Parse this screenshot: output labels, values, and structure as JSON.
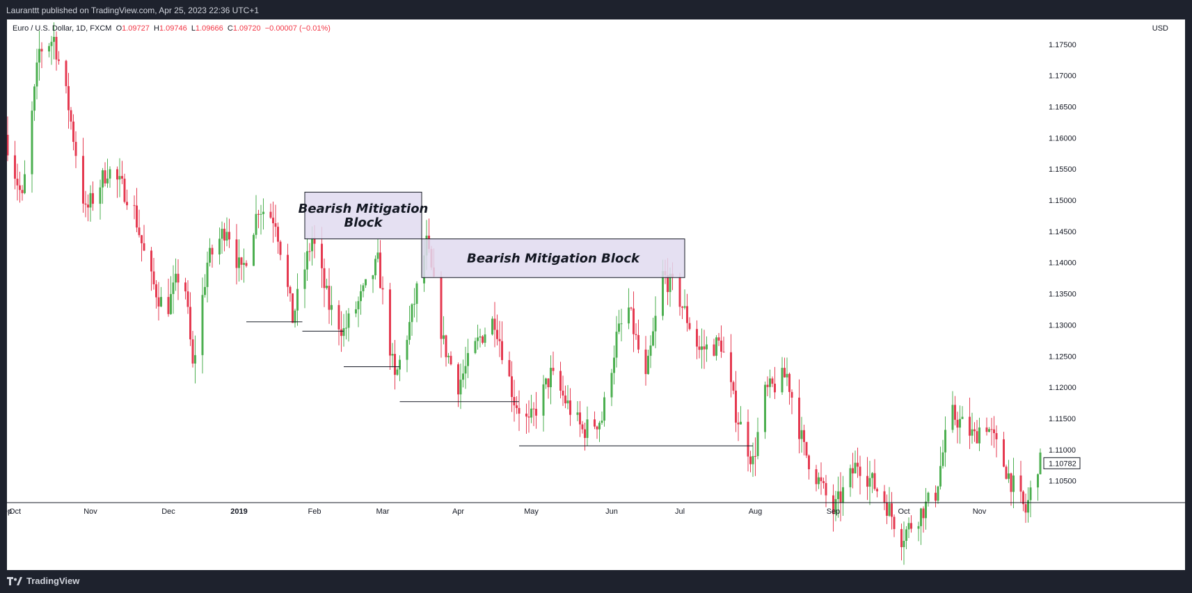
{
  "header": {
    "published_line": "Lauranttt published on TradingView.com, Apr 25, 2023 22:36 UTC+1"
  },
  "legend": {
    "symbol": "Euro / U.S. Dollar, 1D, FXCM",
    "o_label": "O",
    "o_value": "1.09727",
    "h_label": "H",
    "h_value": "1.09746",
    "l_label": "L",
    "l_value": "1.09666",
    "c_label": "C",
    "c_value": "1.09720",
    "change": "−0.00007 (−0.01%)"
  },
  "price_axis": {
    "currency": "USD"
  },
  "footer": {
    "brand": "TradingView"
  },
  "colors": {
    "up": "#4caf50",
    "down": "#e53950",
    "box_fill": "#e0dbf0",
    "box_stroke": "#131722",
    "background": "#ffffff"
  },
  "chart_data": {
    "type": "candlestick",
    "symbol": "EURUSD",
    "timeframe": "1D",
    "ylim": [
      1.1015,
      1.179
    ],
    "y_ticks": [
      "1.17500",
      "1.17000",
      "1.16500",
      "1.16000",
      "1.15500",
      "1.15000",
      "1.14500",
      "1.14000",
      "1.13500",
      "1.13000",
      "1.12500",
      "1.12000",
      "1.11500",
      "1.11000",
      "1.10500"
    ],
    "x_range": [
      "2018-09-28",
      "2019-11-26"
    ],
    "x_ticks": [
      {
        "label": "ep",
        "date": "2018-09-28"
      },
      {
        "label": "Oct",
        "date": "2018-10-01"
      },
      {
        "label": "Nov",
        "date": "2018-11-01"
      },
      {
        "label": "Dec",
        "date": "2018-12-03"
      },
      {
        "label": "2019",
        "date": "2019-01-01"
      },
      {
        "label": "Feb",
        "date": "2019-02-01"
      },
      {
        "label": "Mar",
        "date": "2019-03-01"
      },
      {
        "label": "Apr",
        "date": "2019-04-01"
      },
      {
        "label": "May",
        "date": "2019-05-01"
      },
      {
        "label": "Jun",
        "date": "2019-06-03"
      },
      {
        "label": "Jul",
        "date": "2019-07-01"
      },
      {
        "label": "Aug",
        "date": "2019-08-01"
      },
      {
        "label": "Sep",
        "date": "2019-09-02"
      },
      {
        "label": "Oct",
        "date": "2019-10-01"
      },
      {
        "label": "Nov",
        "date": "2019-11-01"
      }
    ],
    "last_price": "1.10782",
    "price_path": [
      [
        "2018-09-28",
        1.1605
      ],
      [
        "2018-10-05",
        1.15
      ],
      [
        "2018-10-12",
        1.174
      ],
      [
        "2018-10-18",
        1.176
      ],
      [
        "2018-10-24",
        1.165
      ],
      [
        "2018-10-31",
        1.148
      ],
      [
        "2018-11-09",
        1.155
      ],
      [
        "2018-11-13",
        1.153
      ],
      [
        "2018-11-19",
        1.15
      ],
      [
        "2018-11-26",
        1.138
      ],
      [
        "2018-12-03",
        1.132
      ],
      [
        "2018-12-10",
        1.14
      ],
      [
        "2018-12-14",
        1.123
      ],
      [
        "2018-12-20",
        1.14
      ],
      [
        "2018-12-28",
        1.146
      ],
      [
        "2019-01-03",
        1.138
      ],
      [
        "2019-01-10",
        1.149
      ],
      [
        "2019-01-17",
        1.147
      ],
      [
        "2019-01-24",
        1.131
      ],
      [
        "2019-02-01",
        1.144
      ],
      [
        "2019-02-08",
        1.133
      ],
      [
        "2019-02-14",
        1.129
      ],
      [
        "2019-02-22",
        1.135
      ],
      [
        "2019-02-28",
        1.14
      ],
      [
        "2019-03-07",
        1.121
      ],
      [
        "2019-03-13",
        1.13
      ],
      [
        "2019-03-20",
        1.143
      ],
      [
        "2019-03-27",
        1.127
      ],
      [
        "2019-04-02",
        1.1205
      ],
      [
        "2019-04-11",
        1.128
      ],
      [
        "2019-04-17",
        1.131
      ],
      [
        "2019-04-25",
        1.118
      ],
      [
        "2019-05-01",
        1.114
      ],
      [
        "2019-05-10",
        1.122
      ],
      [
        "2019-05-23",
        1.113
      ],
      [
        "2019-05-31",
        1.115
      ],
      [
        "2019-06-06",
        1.128
      ],
      [
        "2019-06-11",
        1.1325
      ],
      [
        "2019-06-18",
        1.121
      ],
      [
        "2019-06-25",
        1.138
      ],
      [
        "2019-07-01",
        1.135
      ],
      [
        "2019-07-10",
        1.126
      ],
      [
        "2019-07-19",
        1.127
      ],
      [
        "2019-07-25",
        1.116
      ],
      [
        "2019-08-01",
        1.108
      ],
      [
        "2019-08-06",
        1.119
      ],
      [
        "2019-08-15",
        1.122
      ],
      [
        "2019-08-22",
        1.11
      ],
      [
        "2019-09-03",
        1.1
      ],
      [
        "2019-09-13",
        1.108
      ],
      [
        "2019-09-24",
        1.102
      ],
      [
        "2019-10-01",
        1.096
      ],
      [
        "2019-10-15",
        1.103
      ],
      [
        "2019-10-21",
        1.116
      ],
      [
        "2019-10-31",
        1.112
      ],
      [
        "2019-11-04",
        1.115
      ],
      [
        "2019-11-15",
        1.105
      ],
      [
        "2019-11-21",
        1.1
      ],
      [
        "2019-11-26",
        1.1078
      ]
    ],
    "annotations": [
      {
        "type": "box",
        "label": "Bearish Mitigation Block",
        "lines": [
          "Bearish Mitigation",
          "Block"
        ],
        "x": [
          "2019-01-28",
          "2019-03-17"
        ],
        "y": [
          1.1438,
          1.1513
        ]
      },
      {
        "type": "box",
        "label": "Bearish Mitigation Block",
        "lines": [
          "Bearish Mitigation Block"
        ],
        "x": [
          "2019-03-17",
          "2019-07-03"
        ],
        "y": [
          1.1376,
          1.1438
        ]
      }
    ],
    "levels": [
      {
        "price": 1.1305,
        "x": [
          "2019-01-04",
          "2019-01-27"
        ]
      },
      {
        "price": 1.129,
        "x": [
          "2019-01-27",
          "2019-02-13"
        ]
      },
      {
        "price": 1.1233,
        "x": [
          "2019-02-13",
          "2019-03-08"
        ]
      },
      {
        "price": 1.1177,
        "x": [
          "2019-03-08",
          "2019-04-26"
        ]
      },
      {
        "price": 1.1106,
        "x": [
          "2019-04-26",
          "2019-07-31"
        ]
      }
    ]
  }
}
